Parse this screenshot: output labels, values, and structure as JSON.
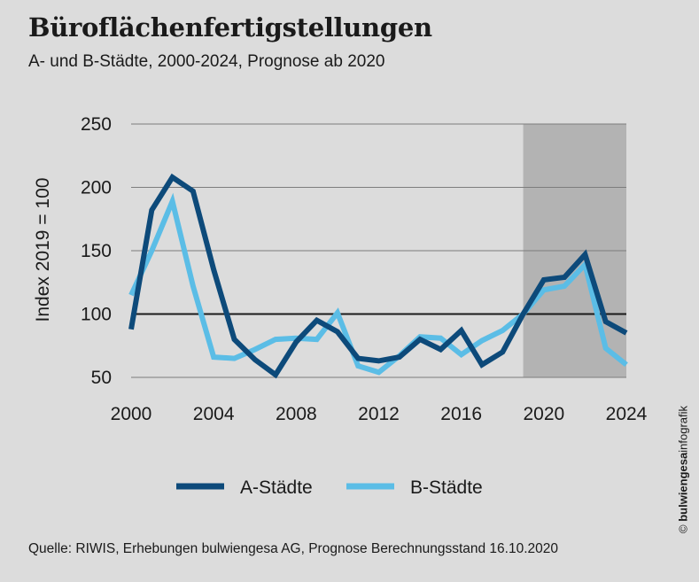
{
  "chart_data": {
    "type": "line",
    "title": "Büroflächenfertigstellungen",
    "subtitle": "A- und B-Städte, 2000-2024, Prognose ab 2020",
    "ylabel": "Index 2019 = 100",
    "xlabel": "",
    "ylim": [
      50,
      250
    ],
    "xlim": [
      2000,
      2024
    ],
    "yticks": [
      50,
      100,
      150,
      200,
      250
    ],
    "xticks": [
      2000,
      2004,
      2008,
      2012,
      2016,
      2020,
      2024
    ],
    "reference_line": 100,
    "forecast_region": [
      2019,
      2024
    ],
    "x": [
      2000,
      2001,
      2002,
      2003,
      2004,
      2005,
      2006,
      2007,
      2008,
      2009,
      2010,
      2011,
      2012,
      2013,
      2014,
      2015,
      2016,
      2017,
      2018,
      2019,
      2020,
      2021,
      2022,
      2023,
      2024
    ],
    "series": [
      {
        "name": "A-Städte",
        "color": "#0d4a7a",
        "values": [
          88,
          182,
          208,
          197,
          135,
          80,
          64,
          52,
          78,
          95,
          86,
          65,
          63,
          66,
          80,
          72,
          87,
          60,
          70,
          100,
          127,
          129,
          147,
          94,
          85
        ]
      },
      {
        "name": "B-Städte",
        "color": "#5bbde6",
        "values": [
          115,
          150,
          189,
          122,
          66,
          65,
          72,
          80,
          81,
          80,
          101,
          59,
          54,
          67,
          82,
          81,
          68,
          79,
          87,
          100,
          119,
          122,
          139,
          73,
          60
        ]
      }
    ]
  },
  "source": "Quelle: RIWIS, Erhebungen bulwiengesa AG, Prognose Berechnungsstand 16.10.2020",
  "credit": {
    "symbol": "©",
    "brand": "bulwiengesa",
    "suffix": "infografik"
  }
}
